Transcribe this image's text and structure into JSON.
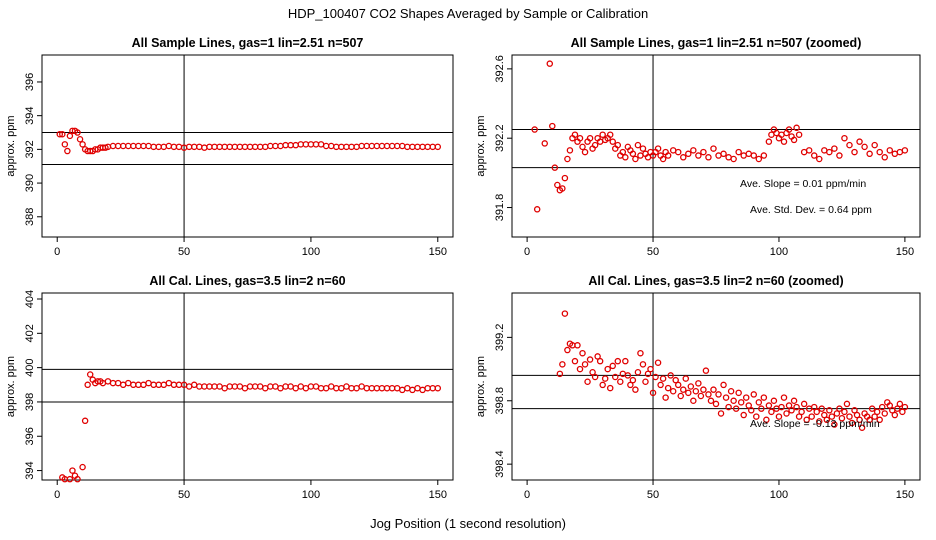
{
  "page": {
    "title": "HDP_100407  CO2 Shapes Averaged by Sample or Calibration",
    "xlabel": "Jog Position (1 second resolution)"
  },
  "colors": {
    "points": "#e00000",
    "lines": "#000000"
  },
  "chart_data": [
    {
      "type": "scatter",
      "title": "All Sample Lines, gas=1 lin=2.51 n=507",
      "xlabel": "",
      "ylabel": "approx. ppm",
      "xlim": [
        -6,
        156
      ],
      "ylim": [
        386.8,
        397.6
      ],
      "xticks": [
        0,
        50,
        100,
        150
      ],
      "yticks": [
        388,
        390,
        392,
        394,
        396
      ],
      "hlines": [
        393.0,
        391.1
      ],
      "vlines": [
        50
      ],
      "annotations": [],
      "x": [
        1,
        2,
        3,
        4,
        5,
        6,
        7,
        8,
        9,
        10,
        11,
        12,
        13,
        14,
        15,
        16,
        17,
        18,
        19,
        20,
        22,
        24,
        26,
        28,
        30,
        32,
        34,
        36,
        38,
        40,
        42,
        44,
        46,
        48,
        50,
        52,
        54,
        56,
        58,
        60,
        62,
        64,
        66,
        68,
        70,
        72,
        74,
        76,
        78,
        80,
        82,
        84,
        86,
        88,
        90,
        92,
        94,
        96,
        98,
        100,
        102,
        104,
        106,
        108,
        110,
        112,
        114,
        116,
        118,
        120,
        122,
        124,
        126,
        128,
        130,
        132,
        134,
        136,
        138,
        140,
        142,
        144,
        146,
        148,
        150
      ],
      "y": [
        392.9,
        392.9,
        392.3,
        391.9,
        392.8,
        393.1,
        393.1,
        393.0,
        392.6,
        392.3,
        392.0,
        391.9,
        391.9,
        391.9,
        392.0,
        392.0,
        392.1,
        392.1,
        392.1,
        392.15,
        392.2,
        392.2,
        392.2,
        392.2,
        392.2,
        392.2,
        392.2,
        392.2,
        392.15,
        392.15,
        392.15,
        392.2,
        392.15,
        392.15,
        392.1,
        392.15,
        392.15,
        392.15,
        392.1,
        392.15,
        392.15,
        392.15,
        392.15,
        392.15,
        392.15,
        392.15,
        392.15,
        392.15,
        392.15,
        392.15,
        392.15,
        392.2,
        392.2,
        392.2,
        392.25,
        392.25,
        392.25,
        392.3,
        392.3,
        392.3,
        392.3,
        392.3,
        392.2,
        392.2,
        392.15,
        392.15,
        392.15,
        392.15,
        392.15,
        392.2,
        392.2,
        392.2,
        392.2,
        392.2,
        392.2,
        392.2,
        392.2,
        392.2,
        392.15,
        392.15,
        392.15,
        392.15,
        392.15,
        392.15,
        392.15
      ]
    },
    {
      "type": "scatter",
      "title": "All Sample Lines, gas=1 lin=2.51 n=507 (zoomed)",
      "xlabel": "",
      "ylabel": "approx. ppm",
      "xlim": [
        -6,
        156
      ],
      "ylim": [
        391.63,
        392.68
      ],
      "xticks": [
        0,
        50,
        100,
        150
      ],
      "yticks": [
        391.8,
        392.2,
        392.6
      ],
      "hlines": [
        392.25,
        392.03
      ],
      "vlines": [
        50
      ],
      "annotations": [
        "Ave. Slope =  0.01  ppm/min",
        "Ave. Std. Dev. =  0.64  ppm"
      ],
      "x": [
        3,
        4,
        7,
        9,
        10,
        11,
        12,
        13,
        14,
        15,
        16,
        17,
        18,
        19,
        20,
        21,
        22,
        23,
        24,
        25,
        26,
        27,
        28,
        29,
        30,
        31,
        32,
        33,
        34,
        35,
        36,
        37,
        38,
        39,
        40,
        41,
        42,
        43,
        44,
        45,
        46,
        47,
        48,
        49,
        50,
        51,
        52,
        53,
        54,
        55,
        56,
        58,
        60,
        62,
        64,
        66,
        68,
        70,
        72,
        74,
        76,
        78,
        80,
        82,
        84,
        86,
        88,
        90,
        92,
        94,
        96,
        97,
        98,
        99,
        100,
        101,
        102,
        103,
        104,
        105,
        106,
        107,
        108,
        110,
        112,
        114,
        116,
        118,
        120,
        122,
        124,
        126,
        128,
        130,
        132,
        134,
        136,
        138,
        140,
        142,
        144,
        146,
        148,
        150
      ],
      "y": [
        392.25,
        391.79,
        392.17,
        392.63,
        392.27,
        392.03,
        391.93,
        391.9,
        391.91,
        391.97,
        392.08,
        392.13,
        392.2,
        392.22,
        392.18,
        392.2,
        392.15,
        392.12,
        392.18,
        392.2,
        392.14,
        392.16,
        392.2,
        392.18,
        392.22,
        392.19,
        392.2,
        392.22,
        392.18,
        392.14,
        392.16,
        392.1,
        392.12,
        392.09,
        392.15,
        392.13,
        392.11,
        392.08,
        392.16,
        392.1,
        392.14,
        392.11,
        392.09,
        392.12,
        392.1,
        392.12,
        392.14,
        392.1,
        392.08,
        392.12,
        392.1,
        392.13,
        392.12,
        392.09,
        392.11,
        392.13,
        392.1,
        392.12,
        392.09,
        392.14,
        392.1,
        392.11,
        392.09,
        392.08,
        392.12,
        392.1,
        392.11,
        392.1,
        392.08,
        392.1,
        392.18,
        392.22,
        392.25,
        392.23,
        392.2,
        392.22,
        392.18,
        392.23,
        392.25,
        392.21,
        392.19,
        392.26,
        392.22,
        392.12,
        392.13,
        392.1,
        392.08,
        392.13,
        392.12,
        392.14,
        392.1,
        392.2,
        392.16,
        392.12,
        392.18,
        392.15,
        392.11,
        392.16,
        392.12,
        392.09,
        392.13,
        392.11,
        392.12,
        392.13
      ]
    },
    {
      "type": "scatter",
      "title": "All Cal. Lines, gas=3.5 lin=2 n=60",
      "xlabel": "",
      "ylabel": "approx. ppm",
      "xlim": [
        -6,
        156
      ],
      "ylim": [
        393.45,
        404.35
      ],
      "xticks": [
        0,
        50,
        100,
        150
      ],
      "yticks": [
        394,
        396,
        398,
        400,
        402,
        404
      ],
      "hlines": [
        399.9,
        398.0
      ],
      "vlines": [
        50
      ],
      "annotations": [],
      "x": [
        2,
        3,
        5,
        6,
        7,
        8,
        10,
        11,
        12,
        13,
        14,
        15,
        16,
        17,
        18,
        20,
        22,
        24,
        26,
        28,
        30,
        32,
        34,
        36,
        38,
        40,
        42,
        44,
        46,
        48,
        50,
        52,
        54,
        56,
        58,
        60,
        62,
        64,
        66,
        68,
        70,
        72,
        74,
        76,
        78,
        80,
        82,
        84,
        86,
        88,
        90,
        92,
        94,
        96,
        98,
        100,
        102,
        104,
        106,
        108,
        110,
        112,
        114,
        116,
        118,
        120,
        122,
        124,
        126,
        128,
        130,
        132,
        134,
        136,
        138,
        140,
        142,
        144,
        146,
        148,
        150
      ],
      "y": [
        393.6,
        393.5,
        393.5,
        394.0,
        393.7,
        393.5,
        394.2,
        396.9,
        399.0,
        399.6,
        399.3,
        399.1,
        399.2,
        399.2,
        399.1,
        399.2,
        399.1,
        399.1,
        399.0,
        399.1,
        399.0,
        399.0,
        399.0,
        399.1,
        399.0,
        399.0,
        399.0,
        399.1,
        399.0,
        399.0,
        399.0,
        398.9,
        399.0,
        398.9,
        398.9,
        398.9,
        398.9,
        398.9,
        398.8,
        398.9,
        398.9,
        398.9,
        398.8,
        398.9,
        398.9,
        398.9,
        398.8,
        398.9,
        398.9,
        398.8,
        398.9,
        398.9,
        398.8,
        398.9,
        398.8,
        398.9,
        398.9,
        398.8,
        398.8,
        398.9,
        398.8,
        398.8,
        398.9,
        398.8,
        398.8,
        398.9,
        398.8,
        398.8,
        398.8,
        398.8,
        398.8,
        398.8,
        398.8,
        398.7,
        398.8,
        398.7,
        398.8,
        398.7,
        398.8,
        398.8,
        398.8
      ]
    },
    {
      "type": "scatter",
      "title": "All Cal. Lines, gas=3.5 lin=2 n=60 (zoomed)",
      "xlabel": "",
      "ylabel": "approx. ppm",
      "xlim": [
        -6,
        156
      ],
      "ylim": [
        398.3,
        399.48
      ],
      "xticks": [
        0,
        50,
        100,
        150
      ],
      "yticks": [
        398.4,
        398.8,
        399.2
      ],
      "hlines": [
        398.96,
        398.75
      ],
      "vlines": [
        50
      ],
      "annotations": [
        "Ave. Slope =  -0.13  ppm/min"
      ],
      "x": [
        13,
        14,
        15,
        16,
        17,
        18,
        19,
        20,
        21,
        22,
        23,
        24,
        25,
        26,
        27,
        28,
        29,
        30,
        31,
        32,
        33,
        34,
        35,
        36,
        37,
        38,
        39,
        40,
        41,
        42,
        43,
        44,
        45,
        46,
        47,
        48,
        49,
        50,
        51,
        52,
        53,
        54,
        55,
        56,
        57,
        58,
        59,
        60,
        61,
        62,
        63,
        64,
        65,
        66,
        67,
        68,
        69,
        70,
        71,
        72,
        73,
        74,
        75,
        76,
        77,
        78,
        79,
        80,
        81,
        82,
        83,
        84,
        85,
        86,
        87,
        88,
        89,
        90,
        91,
        92,
        93,
        94,
        95,
        96,
        97,
        98,
        99,
        100,
        101,
        102,
        103,
        104,
        105,
        106,
        107,
        108,
        109,
        110,
        111,
        112,
        113,
        114,
        115,
        116,
        117,
        118,
        119,
        120,
        121,
        122,
        123,
        124,
        125,
        126,
        127,
        128,
        129,
        130,
        131,
        132,
        133,
        134,
        135,
        136,
        137,
        138,
        139,
        140,
        141,
        142,
        143,
        144,
        145,
        146,
        147,
        148,
        149,
        150
      ],
      "y": [
        398.97,
        399.03,
        399.35,
        399.12,
        399.16,
        399.15,
        399.05,
        399.15,
        399.0,
        399.1,
        399.03,
        398.92,
        399.06,
        398.98,
        398.95,
        399.08,
        399.05,
        398.9,
        398.94,
        399.0,
        398.88,
        399.02,
        398.95,
        399.05,
        398.92,
        398.97,
        399.05,
        398.96,
        398.9,
        398.93,
        398.87,
        398.98,
        399.1,
        399.03,
        398.92,
        398.97,
        399.0,
        398.85,
        398.95,
        399.04,
        398.9,
        398.94,
        398.82,
        398.88,
        398.96,
        398.86,
        398.93,
        398.9,
        398.83,
        398.87,
        398.94,
        398.85,
        398.89,
        398.8,
        398.86,
        398.91,
        398.83,
        398.87,
        398.99,
        398.84,
        398.8,
        398.87,
        398.78,
        398.84,
        398.72,
        398.9,
        398.82,
        398.76,
        398.86,
        398.8,
        398.75,
        398.85,
        398.79,
        398.71,
        398.82,
        398.77,
        398.74,
        398.84,
        398.7,
        398.79,
        398.75,
        398.82,
        398.68,
        398.77,
        398.73,
        398.8,
        398.75,
        398.7,
        398.76,
        398.82,
        398.72,
        398.77,
        398.74,
        398.8,
        398.76,
        398.7,
        398.73,
        398.78,
        398.68,
        398.75,
        398.7,
        398.76,
        398.73,
        398.67,
        398.75,
        398.71,
        398.68,
        398.74,
        398.7,
        398.65,
        398.72,
        398.75,
        398.69,
        398.73,
        398.78,
        398.7,
        398.66,
        398.74,
        398.71,
        398.68,
        398.63,
        398.72,
        398.7,
        398.68,
        398.75,
        398.7,
        398.73,
        398.68,
        398.76,
        398.72,
        398.79,
        398.77,
        398.74,
        398.71,
        398.75,
        398.78,
        398.73,
        398.76
      ]
    }
  ]
}
